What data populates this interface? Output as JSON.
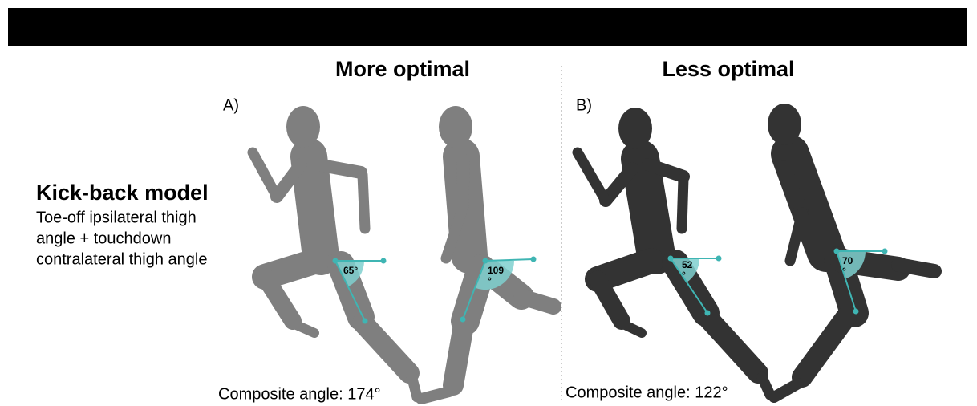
{
  "header": {
    "bar": true
  },
  "panels": [
    {
      "title": "More optimal",
      "label": "A)",
      "angles": [
        [
          "65°"
        ],
        [
          "109",
          "°"
        ]
      ],
      "composite": "Composite angle: 174°"
    },
    {
      "title": "Less optimal",
      "label": "B)",
      "angles": [
        [
          "52",
          "°"
        ],
        [
          "70",
          "°"
        ]
      ],
      "composite": "Composite angle: 122°"
    }
  ],
  "model": {
    "title": "Kick-back model",
    "description": [
      "Toe-off ipsilateral thigh",
      "angle + touchdown",
      "contralateral thigh angle"
    ]
  }
}
